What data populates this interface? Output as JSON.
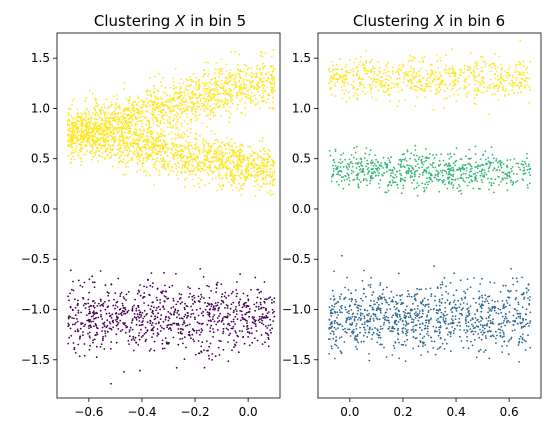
{
  "chart_data": [
    {
      "type": "scatter",
      "title_prefix": "Clustering ",
      "title_var": "X",
      "title_suffix": " in bin 5",
      "xlim": [
        -0.72,
        0.12
      ],
      "ylim": [
        -1.88,
        1.75
      ],
      "xticks": [
        -0.6,
        -0.4,
        -0.2,
        0.0
      ],
      "xtick_labels": [
        "−0.6",
        "−0.4",
        "−0.2",
        "0.0"
      ],
      "yticks": [
        -1.5,
        -1.0,
        -0.5,
        0.0,
        0.5,
        1.0,
        1.5
      ],
      "ytick_labels": [
        "−1.5",
        "−1.0",
        "−0.5",
        "0.0",
        "0.5",
        "1.0",
        "1.5"
      ],
      "grid": false,
      "clusters": [
        {
          "color": "#fde725",
          "x_range": [
            -0.68,
            0.1
          ],
          "y_start": 0.75,
          "y_end": 1.3,
          "spread": 0.13,
          "count": 1400
        },
        {
          "color": "#fde725",
          "x_range": [
            -0.68,
            0.1
          ],
          "y_start": 0.75,
          "y_end": 0.38,
          "spread": 0.11,
          "count": 1400
        },
        {
          "color": "#440154",
          "x_range": [
            -0.68,
            0.1
          ],
          "y_start": -1.08,
          "y_end": -1.08,
          "spread": 0.17,
          "count": 900
        }
      ]
    },
    {
      "type": "scatter",
      "title_prefix": "Clustering ",
      "title_var": "X",
      "title_suffix": " in bin 6",
      "xlim": [
        -0.12,
        0.72
      ],
      "ylim": [
        -1.88,
        1.75
      ],
      "xticks": [
        0.0,
        0.2,
        0.4,
        0.6
      ],
      "xtick_labels": [
        "0.0",
        "0.2",
        "0.4",
        "0.6"
      ],
      "yticks": [
        -1.5,
        -1.0,
        -0.5,
        0.0,
        0.5,
        1.0,
        1.5
      ],
      "ytick_labels": [
        "−1.5",
        "−1.0",
        "−0.5",
        "0.0",
        "0.5",
        "1.0",
        "1.5"
      ],
      "grid": false,
      "clusters": [
        {
          "color": "#fde725",
          "x_range": [
            -0.08,
            0.68
          ],
          "y_start": 1.3,
          "y_end": 1.3,
          "spread": 0.1,
          "count": 700
        },
        {
          "color": "#35b779",
          "x_range": [
            -0.08,
            0.68
          ],
          "y_start": 0.38,
          "y_end": 0.38,
          "spread": 0.09,
          "count": 700
        },
        {
          "color": "#31688e",
          "x_range": [
            -0.08,
            0.68
          ],
          "y_start": -1.08,
          "y_end": -1.08,
          "spread": 0.17,
          "count": 1000
        }
      ]
    }
  ]
}
